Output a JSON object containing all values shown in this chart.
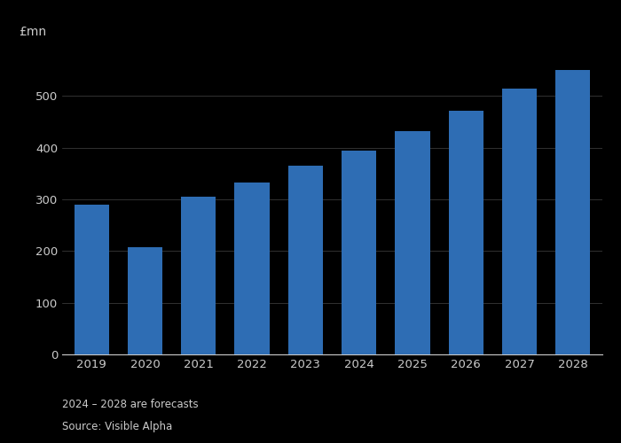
{
  "categories": [
    "2019",
    "2020",
    "2021",
    "2022",
    "2023",
    "2024",
    "2025",
    "2026",
    "2027",
    "2028"
  ],
  "values": [
    290,
    208,
    305,
    332,
    365,
    395,
    432,
    472,
    515,
    550
  ],
  "bar_color": "#2e6db4",
  "ylabel": "£mn",
  "ylim": [
    0,
    600
  ],
  "yticks": [
    0,
    100,
    200,
    300,
    400,
    500
  ],
  "footnote1": "2024 – 2028 are forecasts",
  "footnote2": "Source: Visible Alpha",
  "background_color": "#000000",
  "text_color": "#cccccc",
  "grid_color": "#888888"
}
